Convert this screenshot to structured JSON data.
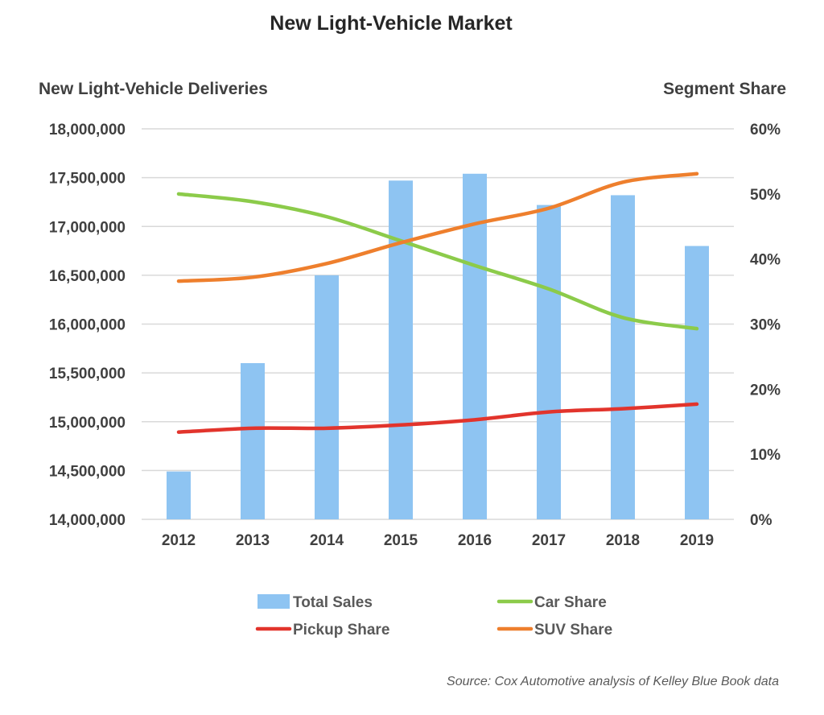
{
  "chart_data": {
    "type": "bar",
    "title": "New Light-Vehicle Market",
    "ylabel": "New Light-Vehicle Deliveries",
    "y2label": "Segment Share",
    "categories": [
      "2012",
      "2013",
      "2014",
      "2015",
      "2016",
      "2017",
      "2018",
      "2019"
    ],
    "ylim": [
      14000000,
      18000000
    ],
    "y_ticks": [
      14000000,
      14500000,
      15000000,
      15500000,
      16000000,
      16500000,
      17000000,
      17500000,
      18000000
    ],
    "y_tick_labels": [
      "14,000,000",
      "14,500,000",
      "15,000,000",
      "15,500,000",
      "16,000,000",
      "16,500,000",
      "17,000,000",
      "17,500,000",
      "18,000,000"
    ],
    "y2lim": [
      0,
      60
    ],
    "y2_ticks": [
      0,
      10,
      20,
      30,
      40,
      50,
      60
    ],
    "y2_tick_labels": [
      "0%",
      "10%",
      "20%",
      "30%",
      "40%",
      "50%",
      "60%"
    ],
    "grid": true,
    "legend_position": "bottom",
    "series": [
      {
        "name": "Total Sales",
        "kind": "bar",
        "axis": "left",
        "color": "#8EC4F2",
        "values": [
          14490000,
          15600000,
          16500000,
          17470000,
          17540000,
          17220000,
          17320000,
          16800000
        ]
      },
      {
        "name": "Car Share",
        "kind": "line",
        "axis": "right",
        "color": "#8CCB4A",
        "values": [
          50.0,
          48.8,
          46.5,
          42.8,
          39.0,
          35.4,
          31.0,
          29.3
        ]
      },
      {
        "name": "Pickup Share",
        "kind": "line",
        "axis": "right",
        "color": "#E2342C",
        "values": [
          13.4,
          14.0,
          14.0,
          14.5,
          15.3,
          16.5,
          17.0,
          17.7
        ]
      },
      {
        "name": "SUV Share",
        "kind": "line",
        "axis": "right",
        "color": "#EE7F2D",
        "values": [
          36.6,
          37.2,
          39.3,
          42.5,
          45.4,
          47.8,
          51.8,
          53.1
        ]
      }
    ],
    "source": "Source: Cox Automotive analysis of Kelley Blue Book data"
  }
}
